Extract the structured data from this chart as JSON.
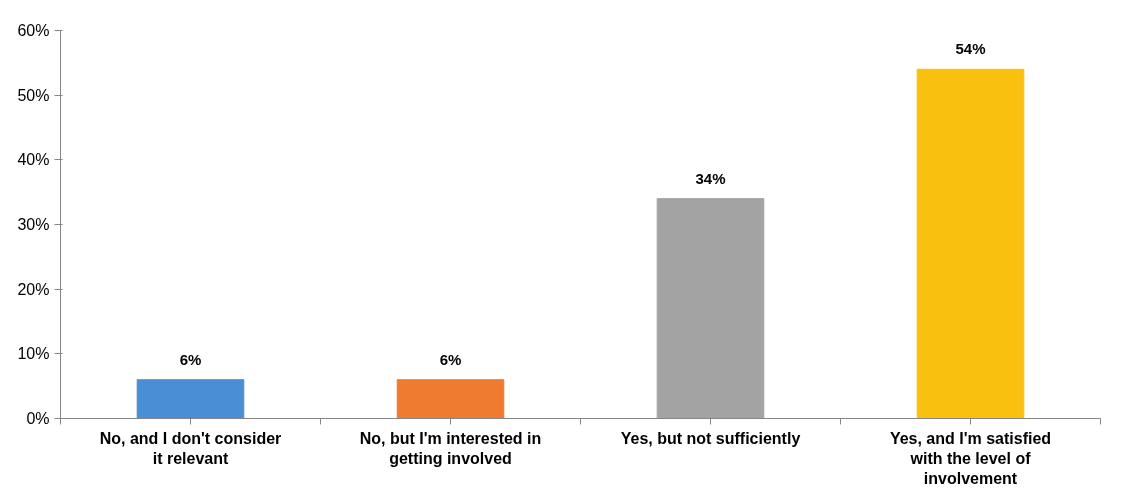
{
  "chart_data": {
    "type": "bar",
    "categories": [
      "No, and I don't consider it relevant",
      "No, but I'm interested in getting involved",
      "Yes, but not sufficiently",
      "Yes, and I'm satisfied with the level of involvement"
    ],
    "values": [
      6,
      6,
      34,
      54
    ],
    "colors": [
      "#4a8fd6",
      "#ee7b30",
      "#a3a3a3",
      "#f9c010"
    ],
    "value_labels": [
      "6%",
      "6%",
      "34%",
      "54%"
    ],
    "ylim": [
      0,
      60
    ],
    "yticks": [
      {
        "value": 0,
        "label": "0%"
      },
      {
        "value": 10,
        "label": "10%"
      },
      {
        "value": 20,
        "label": "20%"
      },
      {
        "value": 30,
        "label": "30%"
      },
      {
        "value": 40,
        "label": "40%"
      },
      {
        "value": 50,
        "label": "50%"
      },
      {
        "value": 60,
        "label": "60%"
      }
    ],
    "grid": false
  }
}
